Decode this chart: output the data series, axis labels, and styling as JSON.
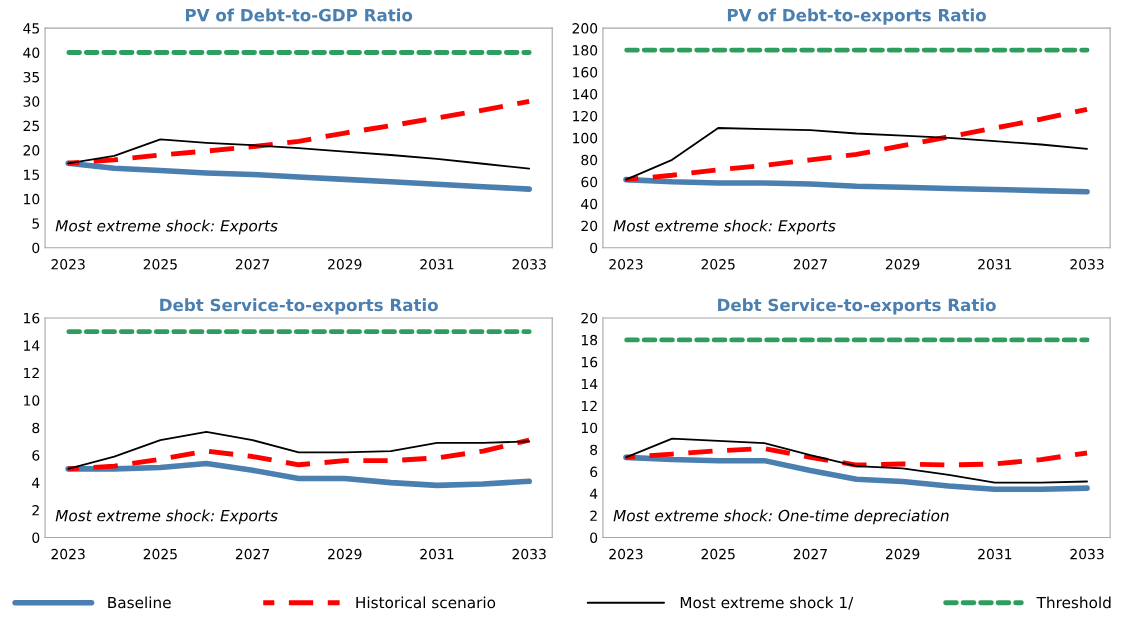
{
  "chart_data": [
    {
      "type": "line",
      "title": "PV of Debt-to-GDP Ratio",
      "categories": [
        "2023",
        null,
        "2025",
        null,
        "2027",
        null,
        "2029",
        null,
        "2031",
        null,
        "2033"
      ],
      "ylim": [
        0,
        45
      ],
      "yticks": [
        0,
        5,
        10,
        15,
        20,
        25,
        30,
        35,
        40,
        45
      ],
      "grid": false,
      "legend": "bottom",
      "annotations": [
        "Most extreme shock: Exports"
      ],
      "series": [
        {
          "name": "Baseline",
          "color": "#4a7fb0",
          "line_style": "solid",
          "values": [
            17.3,
            16.3,
            15.8,
            15.3,
            15.0,
            14.5,
            14.0,
            13.5,
            13.0,
            12.5,
            12.0
          ]
        },
        {
          "name": "Historical scenario",
          "color": "#ff0000",
          "line_style": "dashed",
          "values": [
            17.3,
            18.0,
            19.0,
            19.8,
            20.7,
            21.8,
            23.5,
            25.0,
            26.6,
            28.2,
            30.0
          ]
        },
        {
          "name": "Most extreme shock 1/",
          "color": "#000000",
          "line_style": "solid",
          "values": [
            17.3,
            18.8,
            22.2,
            21.5,
            21.0,
            20.4,
            19.7,
            19.0,
            18.2,
            17.2,
            16.2
          ]
        },
        {
          "name": "Threshold",
          "color": "#2e9e5e",
          "line_style": "dotted",
          "values": [
            40,
            40,
            40,
            40,
            40,
            40,
            40,
            40,
            40,
            40,
            40
          ]
        }
      ]
    },
    {
      "type": "line",
      "title": "PV of Debt-to-exports Ratio",
      "categories": [
        "2023",
        null,
        "2025",
        null,
        "2027",
        null,
        "2029",
        null,
        "2031",
        null,
        "2033"
      ],
      "ylim": [
        0,
        200
      ],
      "yticks": [
        0,
        20,
        40,
        60,
        80,
        100,
        120,
        140,
        160,
        180,
        200
      ],
      "grid": false,
      "annotations": [
        "Most extreme shock: Exports"
      ],
      "series": [
        {
          "color": "#4a7fb0",
          "line_style": "solid",
          "values": [
            62,
            60,
            59,
            59,
            58,
            56,
            55,
            54,
            53,
            52,
            51
          ]
        },
        {
          "color": "#ff0000",
          "line_style": "dashed",
          "values": [
            62,
            66,
            71,
            75,
            80,
            85,
            93,
            101,
            109,
            117,
            126
          ]
        },
        {
          "color": "#000000",
          "line_style": "solid",
          "values": [
            62,
            80,
            109,
            108,
            107,
            104,
            102,
            100,
            97,
            94,
            90
          ]
        },
        {
          "color": "#2e9e5e",
          "line_style": "dotted",
          "values": [
            180,
            180,
            180,
            180,
            180,
            180,
            180,
            180,
            180,
            180,
            180
          ]
        }
      ]
    },
    {
      "type": "line",
      "title": "Debt Service-to-exports Ratio",
      "categories": [
        "2023",
        null,
        "2025",
        null,
        "2027",
        null,
        "2029",
        null,
        "2031",
        null,
        "2033"
      ],
      "ylim": [
        0,
        16
      ],
      "yticks": [
        0,
        2,
        4,
        6,
        8,
        10,
        12,
        14,
        16
      ],
      "grid": false,
      "annotations": [
        "Most extreme shock: Exports"
      ],
      "series": [
        {
          "color": "#4a7fb0",
          "line_style": "solid",
          "values": [
            5.0,
            5.0,
            5.1,
            5.4,
            4.9,
            4.3,
            4.3,
            4.0,
            3.8,
            3.9,
            4.1
          ]
        },
        {
          "color": "#ff0000",
          "line_style": "dashed",
          "values": [
            5.0,
            5.2,
            5.7,
            6.3,
            5.9,
            5.3,
            5.6,
            5.6,
            5.8,
            6.3,
            7.1
          ]
        },
        {
          "color": "#000000",
          "line_style": "solid",
          "values": [
            5.0,
            5.9,
            7.1,
            7.7,
            7.1,
            6.2,
            6.2,
            6.3,
            6.9,
            6.9,
            7.0
          ]
        },
        {
          "color": "#2e9e5e",
          "line_style": "dotted",
          "values": [
            15,
            15,
            15,
            15,
            15,
            15,
            15,
            15,
            15,
            15,
            15
          ]
        }
      ]
    },
    {
      "type": "line",
      "title": "Debt Service-to-exports Ratio",
      "categories": [
        "2023",
        null,
        "2025",
        null,
        "2027",
        null,
        "2029",
        null,
        "2031",
        null,
        "2033"
      ],
      "ylim": [
        0,
        20
      ],
      "yticks": [
        0,
        2,
        4,
        6,
        8,
        10,
        12,
        14,
        16,
        18,
        20
      ],
      "grid": false,
      "annotations": [
        "Most extreme shock: One-time depreciation"
      ],
      "series": [
        {
          "color": "#4a7fb0",
          "line_style": "solid",
          "values": [
            7.3,
            7.1,
            7.0,
            7.0,
            6.1,
            5.3,
            5.1,
            4.7,
            4.4,
            4.4,
            4.5
          ]
        },
        {
          "color": "#ff0000",
          "line_style": "dashed",
          "values": [
            7.3,
            7.6,
            7.9,
            8.1,
            7.3,
            6.6,
            6.7,
            6.6,
            6.7,
            7.1,
            7.7
          ]
        },
        {
          "color": "#000000",
          "line_style": "solid",
          "values": [
            7.3,
            9.0,
            8.8,
            8.6,
            7.5,
            6.5,
            6.3,
            5.7,
            5.0,
            5.0,
            5.1
          ]
        },
        {
          "color": "#2e9e5e",
          "line_style": "dotted",
          "values": [
            18,
            18,
            18,
            18,
            18,
            18,
            18,
            18,
            18,
            18,
            18
          ]
        }
      ]
    }
  ]
}
